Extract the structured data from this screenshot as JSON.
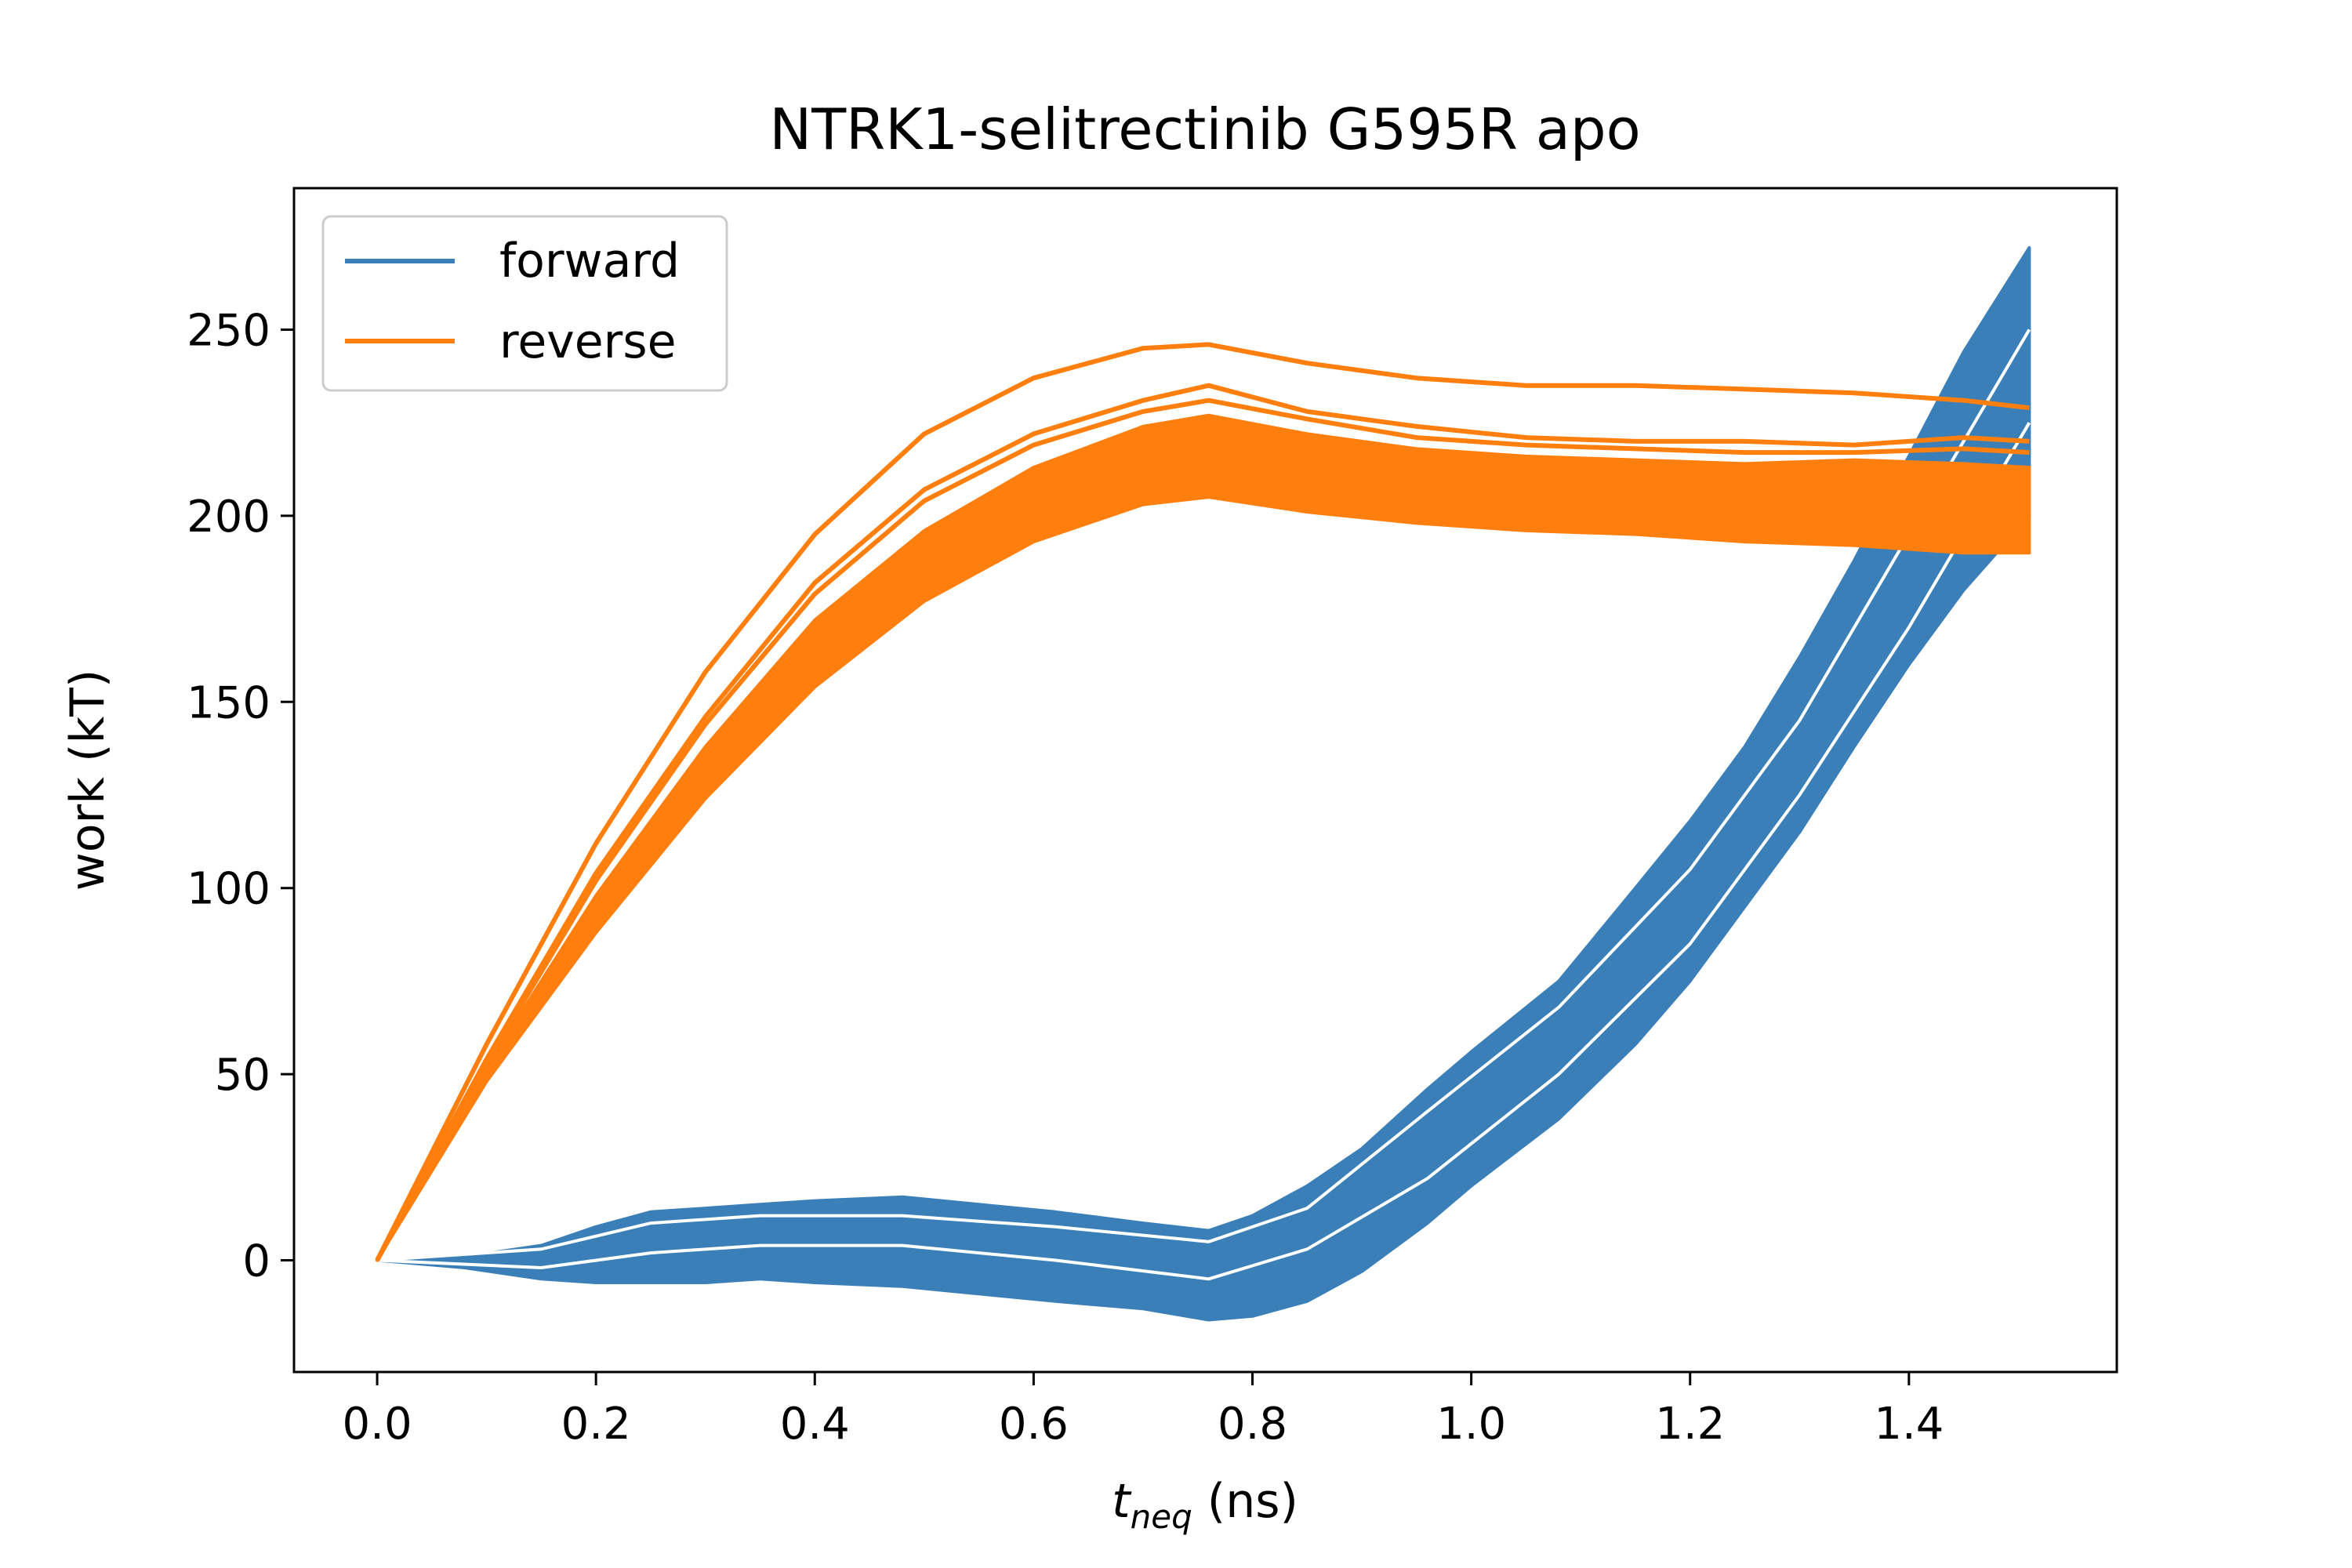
{
  "chart_data": {
    "type": "line",
    "title": "NTRK1-selitrectinib G595R apo",
    "xlabel_main": "t",
    "xlabel_sub": "neq",
    "xlabel_unit": " (ns)",
    "ylabel": "work (kT)",
    "xlim": [
      -0.076,
      1.59
    ],
    "ylim": [
      -30,
      288
    ],
    "xticks": [
      "0.0",
      "0.2",
      "0.4",
      "0.6",
      "0.8",
      "1.0",
      "1.2",
      "1.4"
    ],
    "yticks": [
      "0",
      "50",
      "100",
      "150",
      "200",
      "250"
    ],
    "grid": false,
    "legend_position": "top-left",
    "legend": [
      {
        "label": "forward",
        "color": "#3a7fb8"
      },
      {
        "label": "reverse",
        "color": "#ff7f0e"
      }
    ],
    "series": [
      {
        "name": "forward",
        "color": "#3a7fb8",
        "band": {
          "x": [
            0.0,
            0.08,
            0.15,
            0.2,
            0.25,
            0.3,
            0.35,
            0.4,
            0.48,
            0.55,
            0.62,
            0.7,
            0.76,
            0.8,
            0.85,
            0.9,
            0.96,
            1.0,
            1.08,
            1.15,
            1.2,
            1.25,
            1.3,
            1.35,
            1.4,
            1.45,
            1.51
          ],
          "upper": [
            0.0,
            1,
            4,
            9,
            13,
            14,
            15,
            16,
            17,
            15,
            13,
            10,
            8,
            12,
            20,
            30,
            46,
            56,
            75,
            100,
            118,
            138,
            162,
            188,
            216,
            244,
            272
          ],
          "lower": [
            0.0,
            -2,
            -5,
            -6,
            -6,
            -6,
            -5,
            -6,
            -7,
            -9,
            -11,
            -13,
            -16,
            -15,
            -11,
            -3,
            10,
            20,
            38,
            58,
            75,
            95,
            115,
            138,
            160,
            180,
            200
          ]
        },
        "lines": [
          {
            "x": [
              0.0,
              0.15,
              0.25,
              0.35,
              0.48,
              0.62,
              0.76,
              0.85,
              0.96,
              1.08,
              1.2,
              1.3,
              1.4,
              1.51
            ],
            "y": [
              0,
              3,
              10,
              12,
              12,
              9,
              5,
              14,
              40,
              68,
              105,
              145,
              195,
              250
            ]
          },
          {
            "x": [
              0.0,
              0.15,
              0.25,
              0.35,
              0.48,
              0.62,
              0.76,
              0.85,
              0.96,
              1.08,
              1.2,
              1.3,
              1.4,
              1.51
            ],
            "y": [
              0,
              -2,
              2,
              4,
              4,
              0,
              -5,
              3,
              22,
              50,
              85,
              125,
              170,
              225
            ]
          }
        ]
      },
      {
        "name": "reverse",
        "color": "#ff7f0e",
        "band": {
          "x": [
            0.0,
            0.1,
            0.2,
            0.3,
            0.4,
            0.5,
            0.6,
            0.7,
            0.76,
            0.85,
            0.95,
            1.05,
            1.15,
            1.25,
            1.35,
            1.45,
            1.51
          ],
          "upper": [
            0.0,
            52,
            98,
            138,
            172,
            196,
            213,
            224,
            227,
            222,
            218,
            216,
            215,
            214,
            215,
            214,
            213
          ],
          "lower": [
            0.0,
            48,
            88,
            124,
            154,
            177,
            193,
            203,
            205,
            201,
            198,
            196,
            195,
            193,
            192,
            190,
            190
          ]
        },
        "lines": [
          {
            "x": [
              0.0,
              0.1,
              0.2,
              0.3,
              0.4,
              0.5,
              0.6,
              0.7,
              0.76,
              0.85,
              0.95,
              1.05,
              1.15,
              1.25,
              1.35,
              1.45,
              1.51
            ],
            "y": [
              0,
              58,
              112,
              158,
              195,
              222,
              237,
              245,
              246,
              241,
              237,
              235,
              235,
              234,
              233,
              231,
              229
            ]
          },
          {
            "x": [
              0.0,
              0.1,
              0.2,
              0.3,
              0.4,
              0.5,
              0.6,
              0.7,
              0.76,
              0.85,
              0.95,
              1.05,
              1.15,
              1.25,
              1.35,
              1.45,
              1.51
            ],
            "y": [
              0,
              54,
              104,
              146,
              182,
              207,
              222,
              231,
              235,
              228,
              224,
              221,
              220,
              220,
              219,
              221,
              220
            ]
          },
          {
            "x": [
              0.0,
              0.1,
              0.2,
              0.3,
              0.4,
              0.5,
              0.6,
              0.7,
              0.76,
              0.85,
              0.95,
              1.05,
              1.15,
              1.25,
              1.35,
              1.45,
              1.51
            ],
            "y": [
              0,
              53,
              102,
              144,
              179,
              204,
              219,
              228,
              231,
              226,
              221,
              219,
              218,
              217,
              217,
              218,
              217
            ]
          }
        ]
      }
    ]
  }
}
